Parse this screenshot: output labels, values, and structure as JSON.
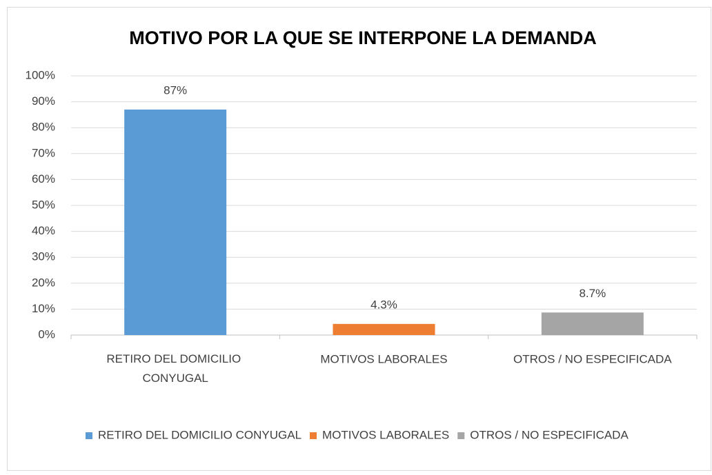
{
  "chart_data": {
    "type": "bar",
    "title": "MOTIVO POR LA QUE SE INTERPONE LA DEMANDA",
    "categories": [
      "RETIRO DEL DOMICILIO CONYUGAL",
      "MOTIVOS LABORALES",
      "OTROS / NO ESPECIFICADA"
    ],
    "values": [
      87,
      4.3,
      8.7
    ],
    "value_labels": [
      "87%",
      "4.3%",
      "8.7%"
    ],
    "colors": [
      "#5b9bd5",
      "#ed7d31",
      "#a5a5a5"
    ],
    "ylim": [
      0,
      100
    ],
    "yticks": [
      {
        "value": 0,
        "label": "0%"
      },
      {
        "value": 10,
        "label": "10%"
      },
      {
        "value": 20,
        "label": "20%"
      },
      {
        "value": 30,
        "label": "30%"
      },
      {
        "value": 40,
        "label": "40%"
      },
      {
        "value": 50,
        "label": "50%"
      },
      {
        "value": 60,
        "label": "60%"
      },
      {
        "value": 70,
        "label": "70%"
      },
      {
        "value": 80,
        "label": "80%"
      },
      {
        "value": 90,
        "label": "90%"
      },
      {
        "value": 100,
        "label": "100%"
      }
    ],
    "grid": true,
    "legend": "bottom"
  }
}
